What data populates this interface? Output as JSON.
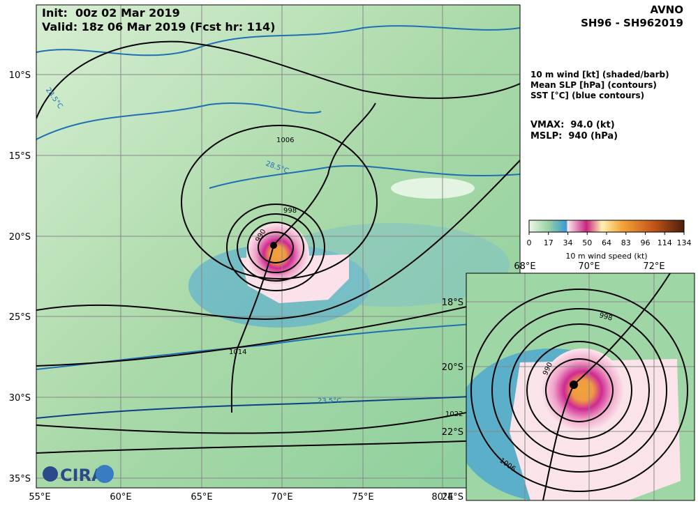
{
  "header": {
    "init": "Init:  00z 02 Mar 2019",
    "valid": "Valid: 18z 06 Mar 2019 (Fcst hr: 114)"
  },
  "product": {
    "model": "AVNO",
    "storm": "SH96 - SH962019"
  },
  "legend": {
    "lines": [
      "10 m wind [kt] (shaded/barb)",
      "Mean SLP [hPa] (contours)",
      "SST [°C] (blue contours)"
    ]
  },
  "stats": {
    "vmax": "VMAX:  94.0 (kt)",
    "mslp": "MSLP:  940 (hPa)"
  },
  "colorbar": {
    "ticks": [
      0,
      17,
      34,
      50,
      64,
      83,
      96,
      114,
      134
    ],
    "label": "10 m wind speed (kt)"
  },
  "map": {
    "lat_labels": [
      "10°S",
      "15°S",
      "20°S",
      "25°S",
      "30°S",
      "35°S"
    ],
    "lon_labels": [
      "55°E",
      "60°E",
      "65°E",
      "70°E",
      "75°E",
      "80°E"
    ],
    "contour_labels": [
      "1006",
      "998",
      "990",
      "1014",
      "1022"
    ],
    "sst_labels": [
      "28.5°C",
      "28.5°C",
      "23.5°C"
    ],
    "logo": "CIRA"
  },
  "inset": {
    "lon_labels": [
      "68°E",
      "70°E",
      "72°E"
    ],
    "lat_labels": [
      "18°S",
      "20°S",
      "22°S",
      "24°S"
    ],
    "contour_labels": [
      "998",
      "990",
      "1006"
    ]
  }
}
